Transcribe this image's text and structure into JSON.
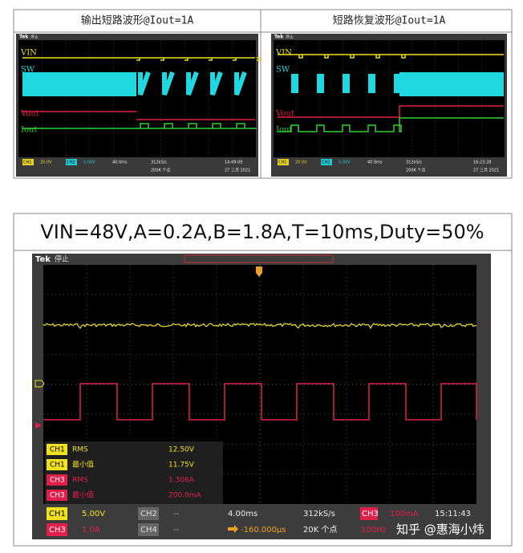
{
  "top_panels": [
    {
      "title": "输出短路波形@Iout=1A",
      "brand": "Tek",
      "state": "停止",
      "channels": [
        "VIN",
        "SW",
        "Vout",
        "Iout"
      ],
      "status": {
        "ch1_label": "CH1",
        "ch1_scale": "20.0V",
        "ch2_label": "CH2",
        "ch2_scale": "5.00V",
        "timebase": "40.0ms",
        "sample_rate": "312kS/s",
        "points": "200K 个点",
        "time": "14:49:09",
        "date": "27 三月 2021"
      }
    },
    {
      "title": "短路恢复波形@Iout=1A",
      "brand": "Tek",
      "state": "停止",
      "channels": [
        "VIN",
        "SW",
        "Vout",
        "Iout"
      ],
      "status": {
        "ch1_label": "CH1",
        "ch1_scale": "20.0V",
        "ch2_label": "CH2",
        "ch2_scale": "5.00V",
        "timebase": "40.0ms",
        "sample_rate": "312kS/s",
        "points": "200K 个点",
        "time": "16:23:28",
        "date": "27 三月 2021"
      }
    }
  ],
  "main": {
    "title": "VIN=48V,A=0.2A,B=1.8A,T=10ms,Duty=50%",
    "brand": "Tek",
    "state": "停止",
    "measurements": [
      {
        "channel": "CH1",
        "name": "RMS",
        "value": "12.50V"
      },
      {
        "channel": "CH1",
        "name": "最小值",
        "value": "11.75V"
      },
      {
        "channel": "CH3",
        "name": "RMS",
        "value": "1.306A"
      },
      {
        "channel": "CH3",
        "name": "最小值",
        "value": "200.0mA"
      }
    ],
    "status": {
      "ch1_label": "CH1",
      "ch1_scale": "5.00V",
      "ch2_label": "CH2",
      "ch2_scale": "--",
      "ch3_label": "CH3",
      "ch3_scale": "1.0A",
      "ch4_label": "CH4",
      "ch4_scale": "--",
      "timebase": "4.00ms",
      "sample_rate": "312kS/s",
      "trigger_pos": "-160.000µs",
      "points": "20K 个点",
      "trig_ch": "CH3",
      "trig_level": "100mA",
      "trig_freq": "100Hz",
      "time": "15:11:43"
    }
  },
  "watermark": "知乎 @惠海小炜"
}
